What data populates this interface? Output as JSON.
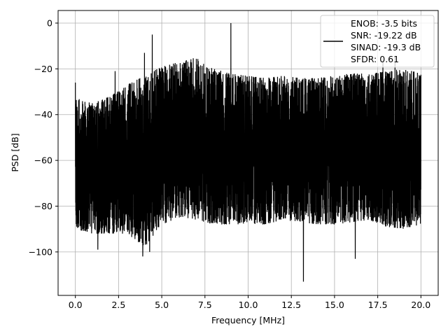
{
  "chart_data": {
    "type": "line",
    "title": "",
    "xlabel": "Frequency [MHz]",
    "ylabel": "PSD [dB]",
    "xlim": [
      -1.0,
      21.0
    ],
    "ylim": [
      -119.0,
      5.5
    ],
    "xticks": [
      0.0,
      2.5,
      5.0,
      7.5,
      10.0,
      12.5,
      15.0,
      17.5,
      20.0
    ],
    "xtick_labels": [
      "0.0",
      "2.5",
      "5.0",
      "7.5",
      "10.0",
      "12.5",
      "15.0",
      "17.5",
      "20.0"
    ],
    "yticks": [
      0,
      -20,
      -40,
      -60,
      -80,
      -100
    ],
    "ytick_labels": [
      "0",
      "−20",
      "−40",
      "−60",
      "−80",
      "−100"
    ],
    "grid": true,
    "legend": {
      "placement": "top-right",
      "entries": [
        "ENOB: -3.5 bits",
        "SNR: -19.22 dB",
        "SINAD: -19.3 dB",
        "SFDR: 0.61"
      ]
    },
    "series": [
      {
        "color": "#000000",
        "x_range": [
          0.0,
          20.0
        ],
        "noise_band": {
          "x": [
            0.0,
            1.0,
            2.0,
            3.0,
            4.0,
            5.0,
            6.0,
            7.0,
            8.0,
            9.0,
            10.0,
            11.0,
            12.0,
            13.0,
            14.0,
            15.0,
            16.0,
            17.0,
            18.0,
            19.0,
            20.0
          ],
          "upper": [
            -32,
            -35,
            -32,
            -27,
            -23,
            -19,
            -17,
            -15,
            -20,
            -22,
            -23,
            -24,
            -23,
            -24,
            -24,
            -23,
            -22,
            -22,
            -21,
            -20,
            -22
          ],
          "lower": [
            -90,
            -92,
            -92,
            -92,
            -98,
            -88,
            -85,
            -86,
            -88,
            -88,
            -88,
            -88,
            -86,
            -87,
            -88,
            -88,
            -87,
            -86,
            -89,
            -90,
            -88
          ]
        },
        "peaks": [
          {
            "x": 0.0,
            "y": -26
          },
          {
            "x": 2.3,
            "y": -21
          },
          {
            "x": 4.0,
            "y": -13
          },
          {
            "x": 4.45,
            "y": -5
          },
          {
            "x": 9.0,
            "y": 0
          },
          {
            "x": 17.8,
            "y": -17
          },
          {
            "x": 18.5,
            "y": -15
          }
        ],
        "dips": [
          {
            "x": 1.3,
            "y": -99
          },
          {
            "x": 3.9,
            "y": -102
          },
          {
            "x": 4.3,
            "y": -100
          },
          {
            "x": 13.2,
            "y": -113
          },
          {
            "x": 16.2,
            "y": -103
          }
        ]
      }
    ]
  }
}
